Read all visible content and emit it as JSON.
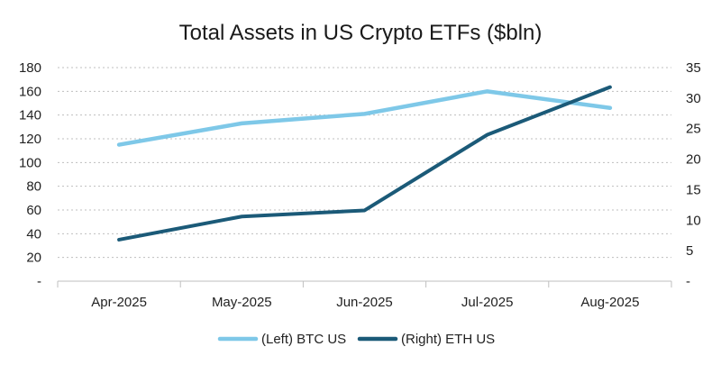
{
  "chart_data": {
    "type": "line",
    "title": "Total Assets in US Crypto ETFs ($bln)",
    "categories": [
      "Apr-2025",
      "May-2025",
      "Jun-2025",
      "Jul-2025",
      "Aug-2025"
    ],
    "y_left": {
      "ylim": [
        0,
        180
      ],
      "ticks": [
        0,
        20,
        40,
        60,
        80,
        100,
        120,
        140,
        160,
        180
      ],
      "tick_labels": [
        "-",
        "20",
        "40",
        "60",
        "80",
        "100",
        "120",
        "140",
        "160",
        "180"
      ]
    },
    "y_right": {
      "ylim": [
        0,
        35
      ],
      "ticks": [
        0,
        5,
        10,
        15,
        20,
        25,
        30,
        35
      ],
      "tick_labels": [
        "-",
        "5",
        "10",
        "15",
        "20",
        "25",
        "30",
        "35"
      ]
    },
    "grid": true,
    "legend_position": "bottom",
    "series": [
      {
        "name": "(Left) BTC US",
        "axis": "left",
        "color": "#7ec8e8",
        "values": [
          115,
          133,
          141,
          160,
          146
        ]
      },
      {
        "name": "(Right) ETH US",
        "axis": "right",
        "color": "#1b5a78",
        "values": [
          6.8,
          10.6,
          11.6,
          24.0,
          31.8
        ]
      }
    ]
  }
}
